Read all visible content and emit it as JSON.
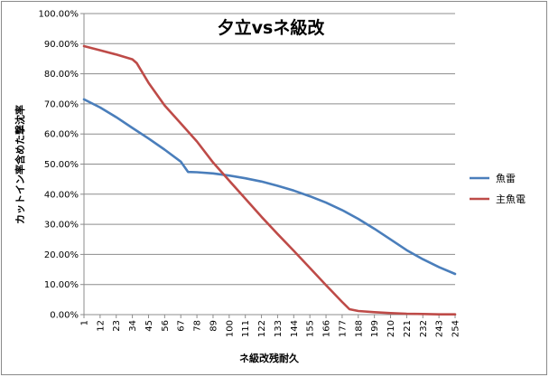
{
  "chart_data": {
    "type": "line",
    "title": "夕立vsネ級改",
    "xlabel": "ネ級改残耐久",
    "ylabel": "カットイン率含めた撃沈率",
    "ylim": [
      0,
      1
    ],
    "xlim": [
      1,
      254
    ],
    "y_ticks": [
      "0.00%",
      "10.00%",
      "20.00%",
      "30.00%",
      "40.00%",
      "50.00%",
      "60.00%",
      "70.00%",
      "80.00%",
      "90.00%",
      "100.00%"
    ],
    "x_ticks": [
      1,
      12,
      23,
      34,
      45,
      56,
      67,
      78,
      89,
      100,
      111,
      122,
      133,
      144,
      155,
      166,
      177,
      188,
      199,
      210,
      221,
      232,
      243,
      254
    ],
    "grid": true,
    "legend_position": "right",
    "series": [
      {
        "name": "魚雷",
        "color": "#4a7ebb",
        "points": [
          [
            1,
            0.715
          ],
          [
            12,
            0.688
          ],
          [
            23,
            0.656
          ],
          [
            34,
            0.62
          ],
          [
            45,
            0.585
          ],
          [
            56,
            0.548
          ],
          [
            67,
            0.508
          ],
          [
            72,
            0.474
          ],
          [
            78,
            0.473
          ],
          [
            89,
            0.469
          ],
          [
            100,
            0.462
          ],
          [
            111,
            0.453
          ],
          [
            122,
            0.442
          ],
          [
            133,
            0.428
          ],
          [
            144,
            0.412
          ],
          [
            155,
            0.393
          ],
          [
            166,
            0.372
          ],
          [
            177,
            0.347
          ],
          [
            188,
            0.318
          ],
          [
            199,
            0.285
          ],
          [
            210,
            0.25
          ],
          [
            221,
            0.214
          ],
          [
            232,
            0.184
          ],
          [
            243,
            0.158
          ],
          [
            254,
            0.135
          ]
        ]
      },
      {
        "name": "主魚電",
        "color": "#be4b48",
        "points": [
          [
            1,
            0.892
          ],
          [
            12,
            0.878
          ],
          [
            23,
            0.864
          ],
          [
            34,
            0.848
          ],
          [
            37,
            0.835
          ],
          [
            45,
            0.77
          ],
          [
            56,
            0.695
          ],
          [
            67,
            0.635
          ],
          [
            78,
            0.575
          ],
          [
            89,
            0.505
          ],
          [
            100,
            0.445
          ],
          [
            111,
            0.385
          ],
          [
            122,
            0.325
          ],
          [
            133,
            0.268
          ],
          [
            144,
            0.212
          ],
          [
            155,
            0.155
          ],
          [
            166,
            0.098
          ],
          [
            177,
            0.042
          ],
          [
            182,
            0.018
          ],
          [
            188,
            0.012
          ],
          [
            199,
            0.008
          ],
          [
            210,
            0.005
          ],
          [
            221,
            0.003
          ],
          [
            232,
            0.002
          ],
          [
            243,
            0.001
          ],
          [
            254,
            0.001
          ]
        ]
      }
    ]
  }
}
